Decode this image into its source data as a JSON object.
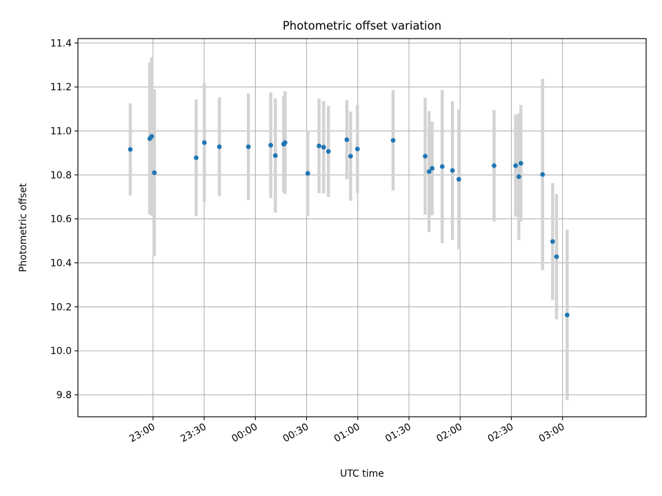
{
  "chart_data": {
    "type": "scatter",
    "title": "Photometric offset variation",
    "xlabel": "UTC time",
    "ylabel": "Photometric offset",
    "x_unit": "minutes",
    "xlim": [
      -44,
      289
    ],
    "ylim": [
      9.7,
      11.42
    ],
    "x_ticks": [
      {
        "value": 0,
        "label": "23:00"
      },
      {
        "value": 30,
        "label": "23:30"
      },
      {
        "value": 60,
        "label": "00:00"
      },
      {
        "value": 90,
        "label": "00:30"
      },
      {
        "value": 120,
        "label": "01:00"
      },
      {
        "value": 150,
        "label": "01:30"
      },
      {
        "value": 180,
        "label": "02:00"
      },
      {
        "value": 210,
        "label": "02:30"
      },
      {
        "value": 240,
        "label": "03:00"
      }
    ],
    "y_ticks": [
      {
        "value": 9.8,
        "label": "9.8"
      },
      {
        "value": 10.0,
        "label": "10.0"
      },
      {
        "value": 10.2,
        "label": "10.2"
      },
      {
        "value": 10.4,
        "label": "10.4"
      },
      {
        "value": 10.6,
        "label": "10.6"
      },
      {
        "value": 10.8,
        "label": "10.8"
      },
      {
        "value": 11.0,
        "label": "11.0"
      },
      {
        "value": 11.2,
        "label": "11.2"
      },
      {
        "value": 11.4,
        "label": "11.4"
      }
    ],
    "grid": true,
    "point_color": "#1f77b4",
    "errorbar_color": "#d3d3d3",
    "points": [
      {
        "x": -13.3,
        "y": 10.916,
        "err": 0.21
      },
      {
        "x": -1.9,
        "y": 10.965,
        "err": 0.345
      },
      {
        "x": -0.8,
        "y": 10.975,
        "err": 0.36
      },
      {
        "x": 0.8,
        "y": 10.81,
        "err": 0.38
      },
      {
        "x": 25.3,
        "y": 10.878,
        "err": 0.265
      },
      {
        "x": 30.1,
        "y": 10.947,
        "err": 0.27
      },
      {
        "x": 38.9,
        "y": 10.928,
        "err": 0.225
      },
      {
        "x": 55.9,
        "y": 10.928,
        "err": 0.242
      },
      {
        "x": 69.0,
        "y": 10.935,
        "err": 0.24
      },
      {
        "x": 71.7,
        "y": 10.888,
        "err": 0.26
      },
      {
        "x": 76.6,
        "y": 10.94,
        "err": 0.22
      },
      {
        "x": 77.4,
        "y": 10.947,
        "err": 0.233
      },
      {
        "x": 90.7,
        "y": 10.807,
        "err": 0.195
      },
      {
        "x": 97.3,
        "y": 10.932,
        "err": 0.215
      },
      {
        "x": 100.0,
        "y": 10.926,
        "err": 0.21
      },
      {
        "x": 102.8,
        "y": 10.907,
        "err": 0.207
      },
      {
        "x": 113.6,
        "y": 10.96,
        "err": 0.18
      },
      {
        "x": 115.8,
        "y": 10.885,
        "err": 0.203
      },
      {
        "x": 119.8,
        "y": 10.918,
        "err": 0.2
      },
      {
        "x": 140.7,
        "y": 10.957,
        "err": 0.228
      },
      {
        "x": 159.5,
        "y": 10.885,
        "err": 0.266
      },
      {
        "x": 161.8,
        "y": 10.815,
        "err": 0.275
      },
      {
        "x": 163.6,
        "y": 10.83,
        "err": 0.213
      },
      {
        "x": 169.5,
        "y": 10.838,
        "err": 0.348
      },
      {
        "x": 175.5,
        "y": 10.82,
        "err": 0.315
      },
      {
        "x": 179.2,
        "y": 10.78,
        "err": 0.318
      },
      {
        "x": 199.9,
        "y": 10.842,
        "err": 0.253
      },
      {
        "x": 212.5,
        "y": 10.842,
        "err": 0.232
      },
      {
        "x": 214.4,
        "y": 10.792,
        "err": 0.288
      },
      {
        "x": 215.6,
        "y": 10.853,
        "err": 0.265
      },
      {
        "x": 228.3,
        "y": 10.802,
        "err": 0.435
      },
      {
        "x": 234.2,
        "y": 10.497,
        "err": 0.266
      },
      {
        "x": 236.5,
        "y": 10.428,
        "err": 0.285
      },
      {
        "x": 242.7,
        "y": 10.163,
        "err": 0.388
      }
    ]
  }
}
